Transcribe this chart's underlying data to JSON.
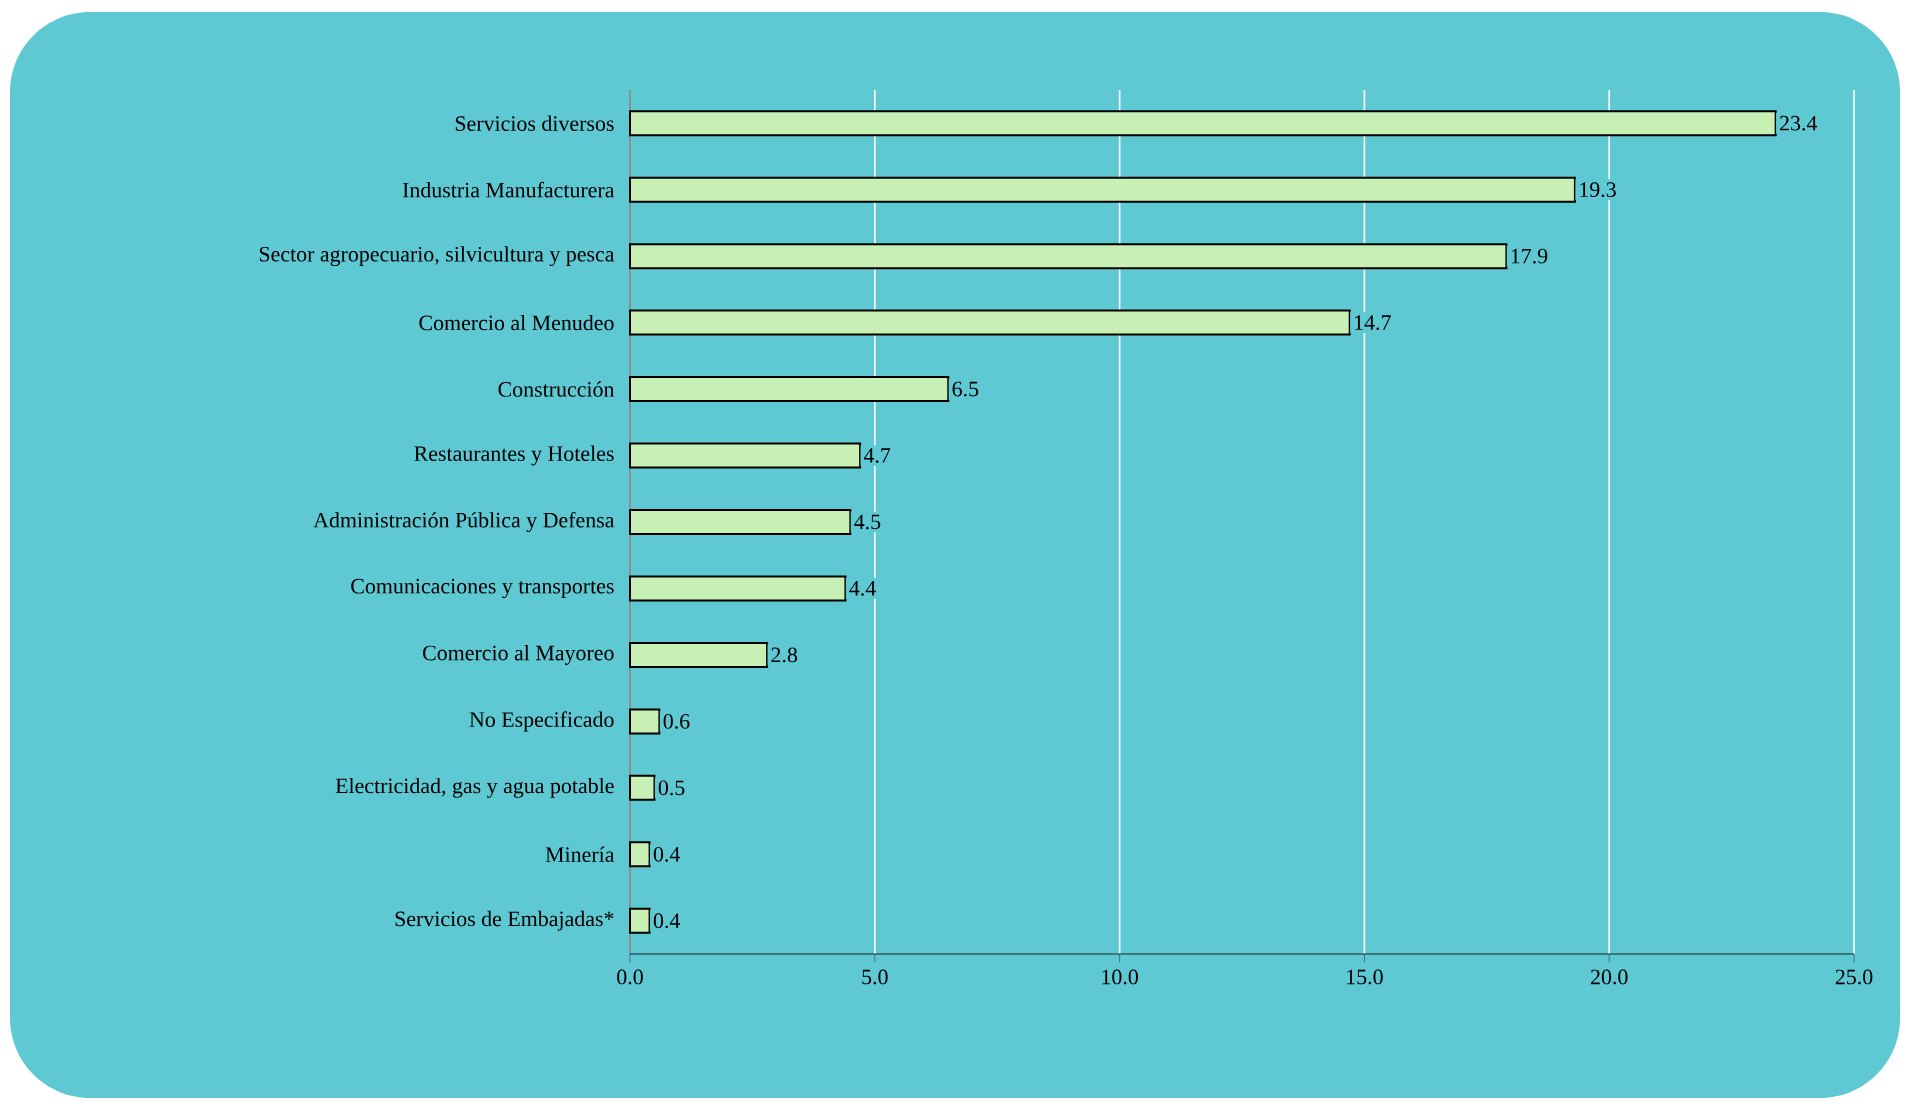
{
  "chart_data": {
    "type": "bar",
    "orientation": "horizontal",
    "categories": [
      "Servicios diversos",
      "Industria Manufacturera",
      "Sector agropecuario, silvicultura y pesca",
      "Comercio al Menudeo",
      "Construcción",
      "Restaurantes y Hoteles",
      "Administración Pública y Defensa",
      "Comunicaciones y transportes",
      "Comercio al Mayoreo",
      "No Especificado",
      "Electricidad, gas y agua potable",
      "Minería",
      "Servicios de Embajadas*"
    ],
    "values": [
      23.4,
      19.3,
      17.9,
      14.7,
      6.5,
      4.7,
      4.5,
      4.4,
      2.8,
      0.6,
      0.5,
      0.4,
      0.4
    ],
    "color": "#c8f0b4",
    "xlim": [
      0,
      25
    ],
    "xticks": [
      {
        "value": 0,
        "label": "0.0"
      },
      {
        "value": 5,
        "label": "5.0"
      },
      {
        "value": 10,
        "label": "10.0"
      },
      {
        "value": 15,
        "label": "15.0"
      },
      {
        "value": 20,
        "label": "20.0"
      },
      {
        "value": 25,
        "label": "25.0"
      }
    ],
    "grid": "x",
    "data_labels": true
  }
}
